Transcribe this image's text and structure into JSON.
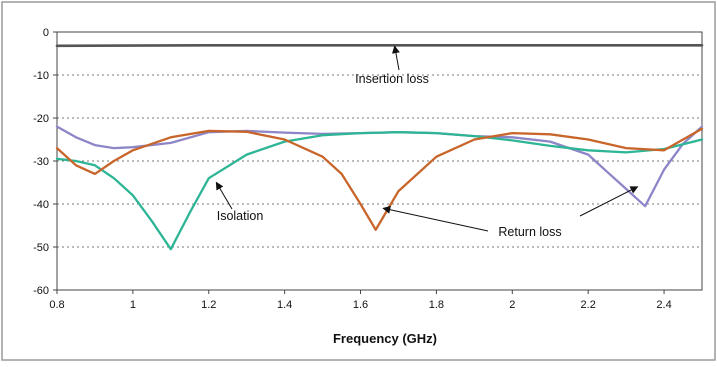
{
  "chart_data": {
    "type": "line",
    "title": "",
    "xlabel": "Frequency (GHz)",
    "ylabel": "",
    "xlim": [
      0.8,
      2.5
    ],
    "ylim": [
      -60,
      0
    ],
    "x_ticks": [
      0.8,
      1.0,
      1.2,
      1.4,
      1.6,
      1.8,
      2.0,
      2.2,
      2.4
    ],
    "x_tick_labels": [
      "0.8",
      "1",
      "1.2",
      "1.4",
      "1.6",
      "1.8",
      "2",
      "2.2",
      "2.4"
    ],
    "y_ticks": [
      0,
      -10,
      -20,
      -30,
      -40,
      -50,
      -60
    ],
    "y_tick_labels": [
      "0",
      "-10",
      "-20",
      "-30",
      "-40",
      "-50",
      "-60"
    ],
    "grid": "horizontal dotted",
    "legend": "none",
    "series": [
      {
        "name": "Insertion loss",
        "color": "#555555",
        "points": [
          [
            0.8,
            -3.2
          ],
          [
            1.2,
            -3.1
          ],
          [
            1.6,
            -3.1
          ],
          [
            2.0,
            -3.1
          ],
          [
            2.5,
            -3.1
          ]
        ]
      },
      {
        "name": "",
        "color": "#8c86c8",
        "points": [
          [
            0.8,
            -22
          ],
          [
            0.85,
            -24.5
          ],
          [
            0.9,
            -26.3
          ],
          [
            0.95,
            -27
          ],
          [
            1.0,
            -26.8
          ],
          [
            1.1,
            -25.8
          ],
          [
            1.2,
            -23.3
          ],
          [
            1.3,
            -23
          ],
          [
            1.4,
            -23.4
          ],
          [
            1.5,
            -23.7
          ],
          [
            1.6,
            -23.5
          ],
          [
            1.7,
            -23.3
          ],
          [
            1.8,
            -23.5
          ],
          [
            1.9,
            -24.2
          ],
          [
            2.0,
            -24.5
          ],
          [
            2.1,
            -25.5
          ],
          [
            2.2,
            -28.5
          ],
          [
            2.25,
            -32.5
          ],
          [
            2.3,
            -36.5
          ],
          [
            2.35,
            -40.5
          ],
          [
            2.4,
            -32
          ],
          [
            2.45,
            -26
          ],
          [
            2.5,
            -22
          ]
        ]
      },
      {
        "name": "Isolation",
        "color": "#2db596",
        "points": [
          [
            0.8,
            -29.5
          ],
          [
            0.85,
            -30
          ],
          [
            0.9,
            -31
          ],
          [
            0.95,
            -34
          ],
          [
            1.0,
            -38
          ],
          [
            1.05,
            -44
          ],
          [
            1.1,
            -50.5
          ],
          [
            1.15,
            -42
          ],
          [
            1.2,
            -34
          ],
          [
            1.3,
            -28.5
          ],
          [
            1.4,
            -25.5
          ],
          [
            1.5,
            -24
          ],
          [
            1.6,
            -23.5
          ],
          [
            1.7,
            -23.3
          ],
          [
            1.8,
            -23.5
          ],
          [
            1.9,
            -24.2
          ],
          [
            2.0,
            -25.2
          ],
          [
            2.1,
            -26.5
          ],
          [
            2.2,
            -27.5
          ],
          [
            2.3,
            -28
          ],
          [
            2.4,
            -27.2
          ],
          [
            2.5,
            -25
          ]
        ]
      },
      {
        "name": "Return loss",
        "color": "#c8652a",
        "points": [
          [
            0.8,
            -27
          ],
          [
            0.85,
            -31
          ],
          [
            0.9,
            -33
          ],
          [
            0.95,
            -30
          ],
          [
            1.0,
            -27.5
          ],
          [
            1.1,
            -24.5
          ],
          [
            1.2,
            -23
          ],
          [
            1.3,
            -23.2
          ],
          [
            1.4,
            -25
          ],
          [
            1.5,
            -29
          ],
          [
            1.55,
            -33
          ],
          [
            1.6,
            -40
          ],
          [
            1.64,
            -46
          ],
          [
            1.7,
            -37
          ],
          [
            1.8,
            -29
          ],
          [
            1.9,
            -25
          ],
          [
            2.0,
            -23.5
          ],
          [
            2.1,
            -23.8
          ],
          [
            2.2,
            -25
          ],
          [
            2.3,
            -27
          ],
          [
            2.4,
            -27.5
          ],
          [
            2.5,
            -22.5
          ]
        ]
      }
    ],
    "annotations": [
      {
        "text": "Insertion loss",
        "arrow_to": [
          1.69,
          -3.3
        ]
      },
      {
        "text": "Isolation",
        "arrow_to": [
          1.22,
          -35
        ]
      },
      {
        "text": "Return loss",
        "arrow_to": [
          1.66,
          -41
        ]
      },
      {
        "text": "",
        "arrow_to": [
          2.33,
          -36
        ]
      }
    ]
  }
}
